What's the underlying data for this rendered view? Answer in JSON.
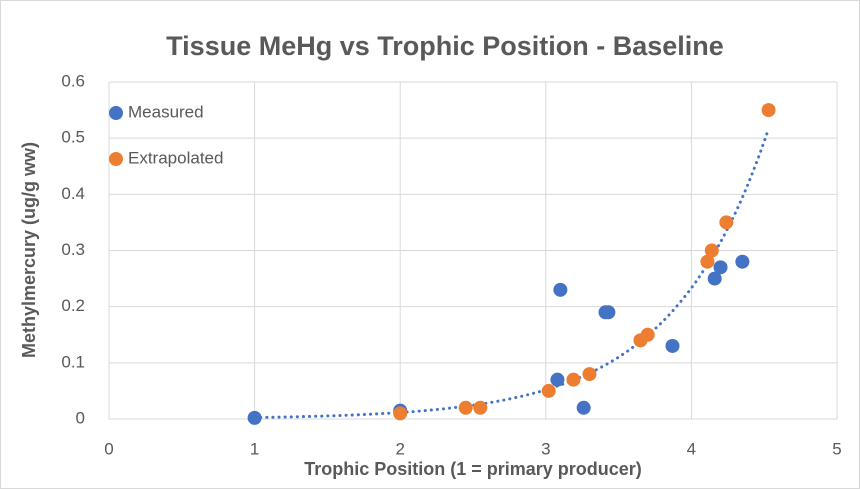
{
  "chart_data": {
    "type": "scatter",
    "title": "Tissue MeHg vs Trophic Position - Baseline",
    "x_label": "Trophic Position (1 = primary producer)",
    "y_label": "Methylmercury (ug/g ww)",
    "xlim": [
      0,
      5
    ],
    "xticks": [
      0,
      1,
      2,
      3,
      4,
      5
    ],
    "ylim": [
      0,
      0.6
    ],
    "yticks": [
      0,
      0.1,
      0.2,
      0.3,
      0.4,
      0.5,
      0.6
    ],
    "grid": true,
    "legend": "top-left",
    "trendline": {
      "type": "exponential",
      "color": "#4472c4"
    },
    "series": [
      {
        "name": "Measured",
        "color": "#4472c4",
        "x": [
          1,
          2,
          3.08,
          3.1,
          3.26,
          3.41,
          3.43,
          3.87,
          4.16,
          4.2,
          4.35
        ],
        "values": [
          0.002,
          0.015,
          0.07,
          0.23,
          0.02,
          0.19,
          0.19,
          0.13,
          0.25,
          0.27,
          0.28
        ]
      },
      {
        "name": "Extrapolated",
        "color": "#ed7d31",
        "x": [
          2,
          2.45,
          2.55,
          3.02,
          3.19,
          3.3,
          3.65,
          3.7,
          4.11,
          4.14,
          4.24,
          4.53
        ],
        "values": [
          0.01,
          0.02,
          0.02,
          0.05,
          0.07,
          0.08,
          0.14,
          0.15,
          0.28,
          0.3,
          0.35,
          0.55
        ]
      }
    ]
  }
}
